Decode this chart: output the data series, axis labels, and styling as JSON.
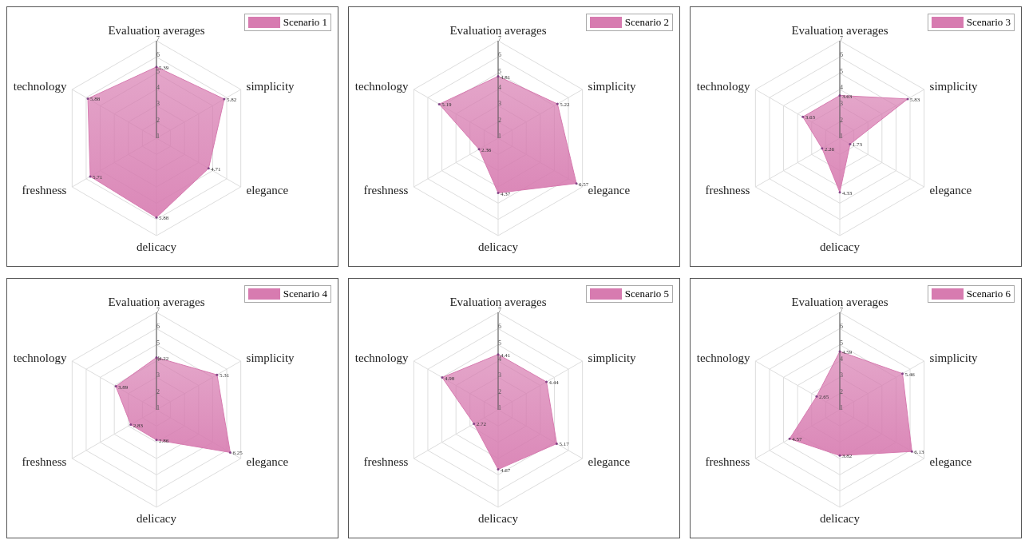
{
  "chart_data": [
    {
      "type": "radar",
      "categories": [
        "Evaluation averages",
        "simplicity",
        "elegance",
        "delicacy",
        "freshness",
        "technology"
      ],
      "ylim": [
        1,
        7
      ],
      "yticks": [
        1,
        2,
        3,
        4,
        5,
        6,
        7
      ],
      "grid": true,
      "legend": "top right",
      "data_labels": true,
      "series": [
        {
          "name": "Scenario 1",
          "color": "#d77bb0",
          "values": [
            5.39,
            5.82,
            4.71,
            5.88,
            5.71,
            5.88
          ]
        }
      ]
    },
    {
      "type": "radar",
      "categories": [
        "Evaluation averages",
        "simplicity",
        "elegance",
        "delicacy",
        "freshness",
        "technology"
      ],
      "ylim": [
        1,
        7
      ],
      "yticks": [
        1,
        2,
        3,
        4,
        5,
        6,
        7
      ],
      "grid": true,
      "legend": "top right",
      "data_labels": true,
      "series": [
        {
          "name": "Scenario 2",
          "color": "#d77bb0",
          "values": [
            4.81,
            5.22,
            6.57,
            4.37,
            2.36,
            5.19
          ]
        }
      ]
    },
    {
      "type": "radar",
      "categories": [
        "Evaluation averages",
        "simplicity",
        "elegance",
        "delicacy",
        "freshness",
        "technology"
      ],
      "ylim": [
        1,
        7
      ],
      "yticks": [
        1,
        2,
        3,
        4,
        5,
        6,
        7
      ],
      "grid": true,
      "legend": "top right",
      "data_labels": true,
      "series": [
        {
          "name": "Scenario 3",
          "color": "#d77bb0",
          "values": [
            3.63,
            5.83,
            1.73,
            4.33,
            2.26,
            3.63
          ]
        }
      ]
    },
    {
      "type": "radar",
      "categories": [
        "Evaluation averages",
        "simplicity",
        "elegance",
        "delicacy",
        "freshness",
        "technology"
      ],
      "ylim": [
        1,
        7
      ],
      "yticks": [
        1,
        2,
        3,
        4,
        5,
        6,
        7
      ],
      "grid": true,
      "legend": "top right",
      "data_labels": true,
      "series": [
        {
          "name": "Scenario 4",
          "color": "#d77bb0",
          "values": [
            4.22,
            5.31,
            6.25,
            2.86,
            2.83,
            3.89
          ]
        }
      ]
    },
    {
      "type": "radar",
      "categories": [
        "Evaluation averages",
        "simplicity",
        "elegance",
        "delicacy",
        "freshness",
        "technology"
      ],
      "ylim": [
        1,
        7
      ],
      "yticks": [
        1,
        2,
        3,
        4,
        5,
        6,
        7
      ],
      "grid": true,
      "legend": "top right",
      "data_labels": true,
      "series": [
        {
          "name": "Scenario 5",
          "color": "#d77bb0",
          "values": [
            4.41,
            4.44,
            5.17,
            4.67,
            2.72,
            4.98
          ]
        }
      ]
    },
    {
      "type": "radar",
      "categories": [
        "Evaluation averages",
        "simplicity",
        "elegance",
        "delicacy",
        "freshness",
        "technology"
      ],
      "ylim": [
        1,
        7
      ],
      "yticks": [
        1,
        2,
        3,
        4,
        5,
        6,
        7
      ],
      "grid": true,
      "legend": "top right",
      "data_labels": true,
      "series": [
        {
          "name": "Scenario 6",
          "color": "#d77bb0",
          "values": [
            4.59,
            5.46,
            6.13,
            3.82,
            4.57,
            2.65
          ]
        }
      ]
    }
  ]
}
